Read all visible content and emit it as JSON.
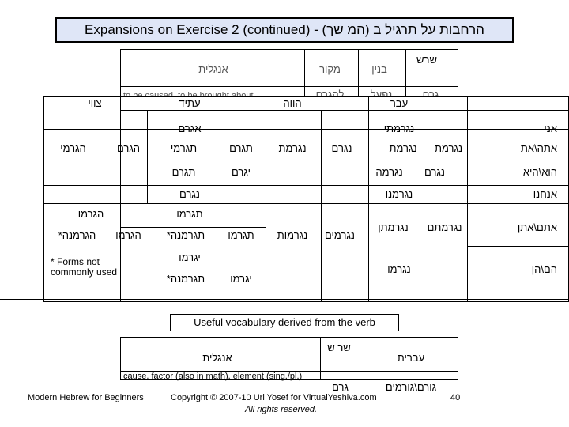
{
  "title": "Expansions on Exercise 2 (continued) - הרחבות על תרגיל ב (המ שך)",
  "verb_header": {
    "shoresh": "שרש",
    "binyan": "בנין",
    "makor": "מקור",
    "english": "אנגלית",
    "shoresh_val": "גרם",
    "binyan_val": "נפעל",
    "makor_val": "להגרם",
    "english_val": "to be caused, to be brought about"
  },
  "tense_headers": {
    "past": "עבר",
    "present": "הווה",
    "future": "עתיד",
    "imperative": "צווי"
  },
  "pronouns": [
    "אני",
    "אתה\\את",
    "הוא\\היא",
    "אנחנו",
    "אתם\\אתן",
    "הם\\הן"
  ],
  "past": {
    "ani": "נגרמתי",
    "ata": "נגרמת",
    "at": "נגרמת",
    "hu": "נגרם",
    "hi": "נגרמה",
    "anachnu": "נגרמנו",
    "atem": "נגרמתם",
    "aten": "נגרמתן",
    "hem": "נגרמו"
  },
  "present": {
    "ms": "נגרם",
    "fs": "נגרמת",
    "mp": "נגרמים",
    "fp": "נגרמות"
  },
  "future": {
    "ani": "אגרם",
    "ata": "תגרם",
    "at": "תגרמי",
    "hu": "יגרם",
    "hi": "תגרם",
    "anachnu": "נגרם",
    "atem_all": "תגרמו",
    "atem": "תגרמו",
    "aten": "תגרמנה*",
    "hem_all": "יגרמו",
    "hem": "יגרמו",
    "hen": "תגרמנה*"
  },
  "imperative": {
    "m": "הגרם",
    "f": "הגרמי",
    "pl_all": "הגרמו",
    "mp": "הגרמו",
    "fp": "הגרמנה*"
  },
  "footnote": "* Forms not commonly used",
  "vocab_title": "Useful vocabulary derived from the verb",
  "vocab": {
    "hebrew_h": "עברית",
    "shoresh_h": "שר ש",
    "english_h": "אנגלית",
    "hebrew_val": "גורם\\גורמים",
    "shoresh_val": "גרם",
    "english_val": "cause, factor (also in math), element (sing./pl.)"
  },
  "footer": {
    "left": "Modern Hebrew for Beginners",
    "copyright": "Copyright © 2007-10 Uri Yosef for VirtualYeshiva.com",
    "rights": "All rights reserved.",
    "page": "40"
  }
}
